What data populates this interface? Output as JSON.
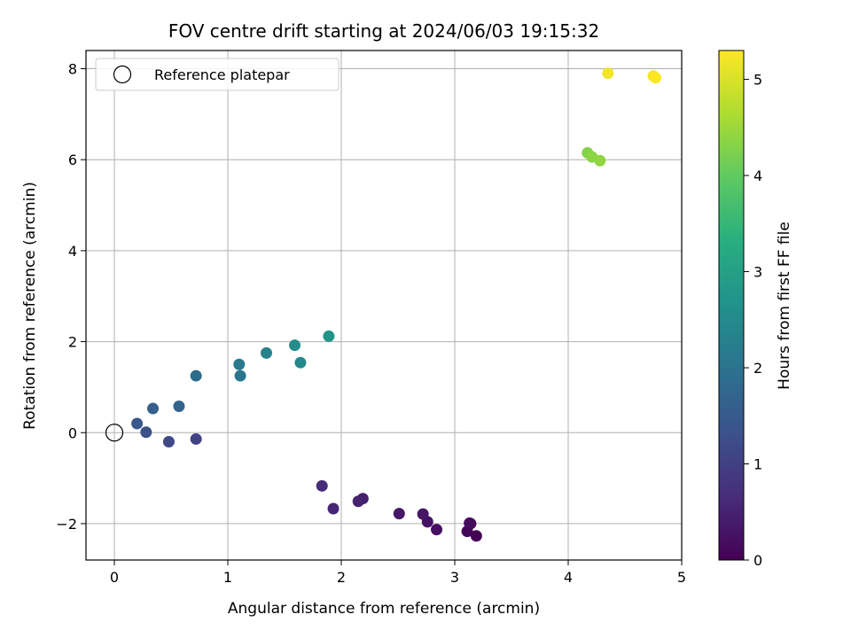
{
  "chart_data": {
    "type": "scatter",
    "title": "FOV centre drift starting at 2024/06/03 19:15:32",
    "xlabel": "Angular distance from reference (arcmin)",
    "ylabel": "Rotation from reference (arcmin)",
    "xlim": [
      -0.25,
      5
    ],
    "ylim": [
      -2.8,
      8.4
    ],
    "xticks": [
      0,
      1,
      2,
      3,
      4,
      5
    ],
    "yticks": [
      -2,
      0,
      2,
      4,
      6,
      8
    ],
    "grid": true,
    "legend": {
      "location": "upper-left",
      "entries": [
        "Reference platepar"
      ]
    },
    "reference_point": {
      "x": 0,
      "y": 0
    },
    "colorbar": {
      "label": "Hours from first FF file",
      "range": [
        0,
        5.3
      ],
      "ticks": [
        0,
        1,
        2,
        3,
        4,
        5
      ],
      "colormap": "viridis"
    },
    "points": [
      {
        "x": 3.19,
        "y": -2.27,
        "hours": 0.0
      },
      {
        "x": 3.11,
        "y": -2.17,
        "hours": 0.05
      },
      {
        "x": 3.14,
        "y": -2.0,
        "hours": 0.1
      },
      {
        "x": 3.13,
        "y": -1.99,
        "hours": 0.15
      },
      {
        "x": 2.84,
        "y": -2.13,
        "hours": 0.2
      },
      {
        "x": 2.76,
        "y": -1.96,
        "hours": 0.25
      },
      {
        "x": 2.72,
        "y": -1.79,
        "hours": 0.3
      },
      {
        "x": 2.51,
        "y": -1.78,
        "hours": 0.35
      },
      {
        "x": 2.19,
        "y": -1.45,
        "hours": 0.45
      },
      {
        "x": 2.15,
        "y": -1.51,
        "hours": 0.5
      },
      {
        "x": 1.93,
        "y": -1.67,
        "hours": 0.55
      },
      {
        "x": 1.83,
        "y": -1.17,
        "hours": 0.65
      },
      {
        "x": 0.72,
        "y": -0.14,
        "hours": 1.05
      },
      {
        "x": 0.48,
        "y": -0.2,
        "hours": 1.15
      },
      {
        "x": 0.28,
        "y": 0.01,
        "hours": 1.3
      },
      {
        "x": 0.2,
        "y": 0.2,
        "hours": 1.45
      },
      {
        "x": 0.34,
        "y": 0.53,
        "hours": 1.6
      },
      {
        "x": 0.57,
        "y": 0.58,
        "hours": 1.7
      },
      {
        "x": 0.72,
        "y": 1.25,
        "hours": 1.85
      },
      {
        "x": 1.11,
        "y": 1.25,
        "hours": 2.05
      },
      {
        "x": 1.1,
        "y": 1.5,
        "hours": 2.15
      },
      {
        "x": 1.34,
        "y": 1.75,
        "hours": 2.3
      },
      {
        "x": 1.64,
        "y": 1.54,
        "hours": 2.45
      },
      {
        "x": 1.59,
        "y": 1.92,
        "hours": 2.55
      },
      {
        "x": 1.89,
        "y": 2.12,
        "hours": 2.75
      },
      {
        "x": 4.17,
        "y": 6.15,
        "hours": 4.3
      },
      {
        "x": 4.21,
        "y": 6.06,
        "hours": 4.35
      },
      {
        "x": 4.28,
        "y": 5.98,
        "hours": 4.4
      },
      {
        "x": 4.35,
        "y": 7.9,
        "hours": 5.2
      },
      {
        "x": 4.75,
        "y": 7.84,
        "hours": 5.25
      },
      {
        "x": 4.77,
        "y": 7.8,
        "hours": 5.3
      }
    ]
  }
}
